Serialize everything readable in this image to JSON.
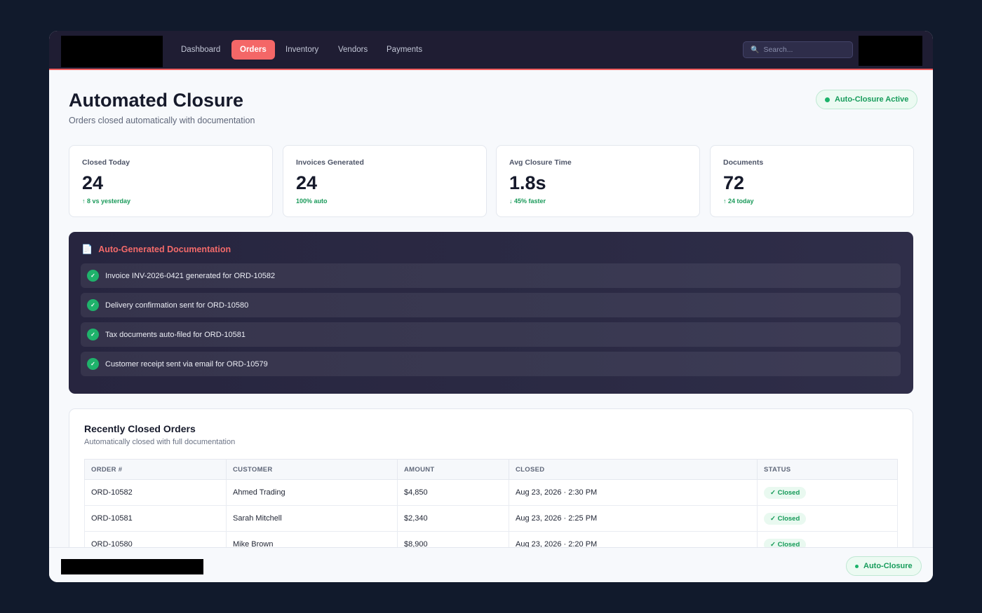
{
  "nav": {
    "items": [
      "Dashboard",
      "Orders",
      "Inventory",
      "Vendors",
      "Payments"
    ],
    "active": "Orders",
    "search_placeholder": "Search...",
    "search_icon": "search-icon"
  },
  "header": {
    "title": "Automated Closure",
    "subtitle": "Orders closed automatically with documentation",
    "status": "Auto-Closure Active"
  },
  "stats": [
    {
      "label": "Closed Today",
      "value": "24",
      "delta": "↑ 8 vs yesterday"
    },
    {
      "label": "Invoices Generated",
      "value": "24",
      "delta": "100% auto"
    },
    {
      "label": "Avg Closure Time",
      "value": "1.8s",
      "delta": "↓ 45% faster"
    },
    {
      "label": "Documents",
      "value": "72",
      "delta": "↑ 24 today"
    }
  ],
  "docs": {
    "title": "Auto-Generated Documentation",
    "icon": "document-icon",
    "items": [
      "Invoice INV-2026-0421 generated for ORD-10582",
      "Delivery confirmation sent for ORD-10580",
      "Tax documents auto-filed for ORD-10581",
      "Customer receipt sent via email for ORD-10579"
    ]
  },
  "table": {
    "title": "Recently Closed Orders",
    "subtitle": "Automatically closed with full documentation",
    "columns": [
      "ORDER #",
      "CUSTOMER",
      "AMOUNT",
      "CLOSED",
      "STATUS"
    ],
    "rows": [
      [
        "ORD-10582",
        "Ahmed Trading",
        "$4,850",
        "Aug 23, 2026 · 2:30 PM",
        "✓ Closed"
      ],
      [
        "ORD-10581",
        "Sarah Mitchell",
        "$2,340",
        "Aug 23, 2026 · 2:25 PM",
        "✓ Closed"
      ],
      [
        "ORD-10580",
        "Mike Brown",
        "$8,900",
        "Aug 23, 2026 · 2:20 PM",
        "✓ Closed"
      ]
    ]
  },
  "footer": {
    "status": "Auto-Closure"
  },
  "colors": {
    "accent": "#f46767",
    "success": "#1bb36a",
    "nav_bg": "#1f1d33"
  }
}
